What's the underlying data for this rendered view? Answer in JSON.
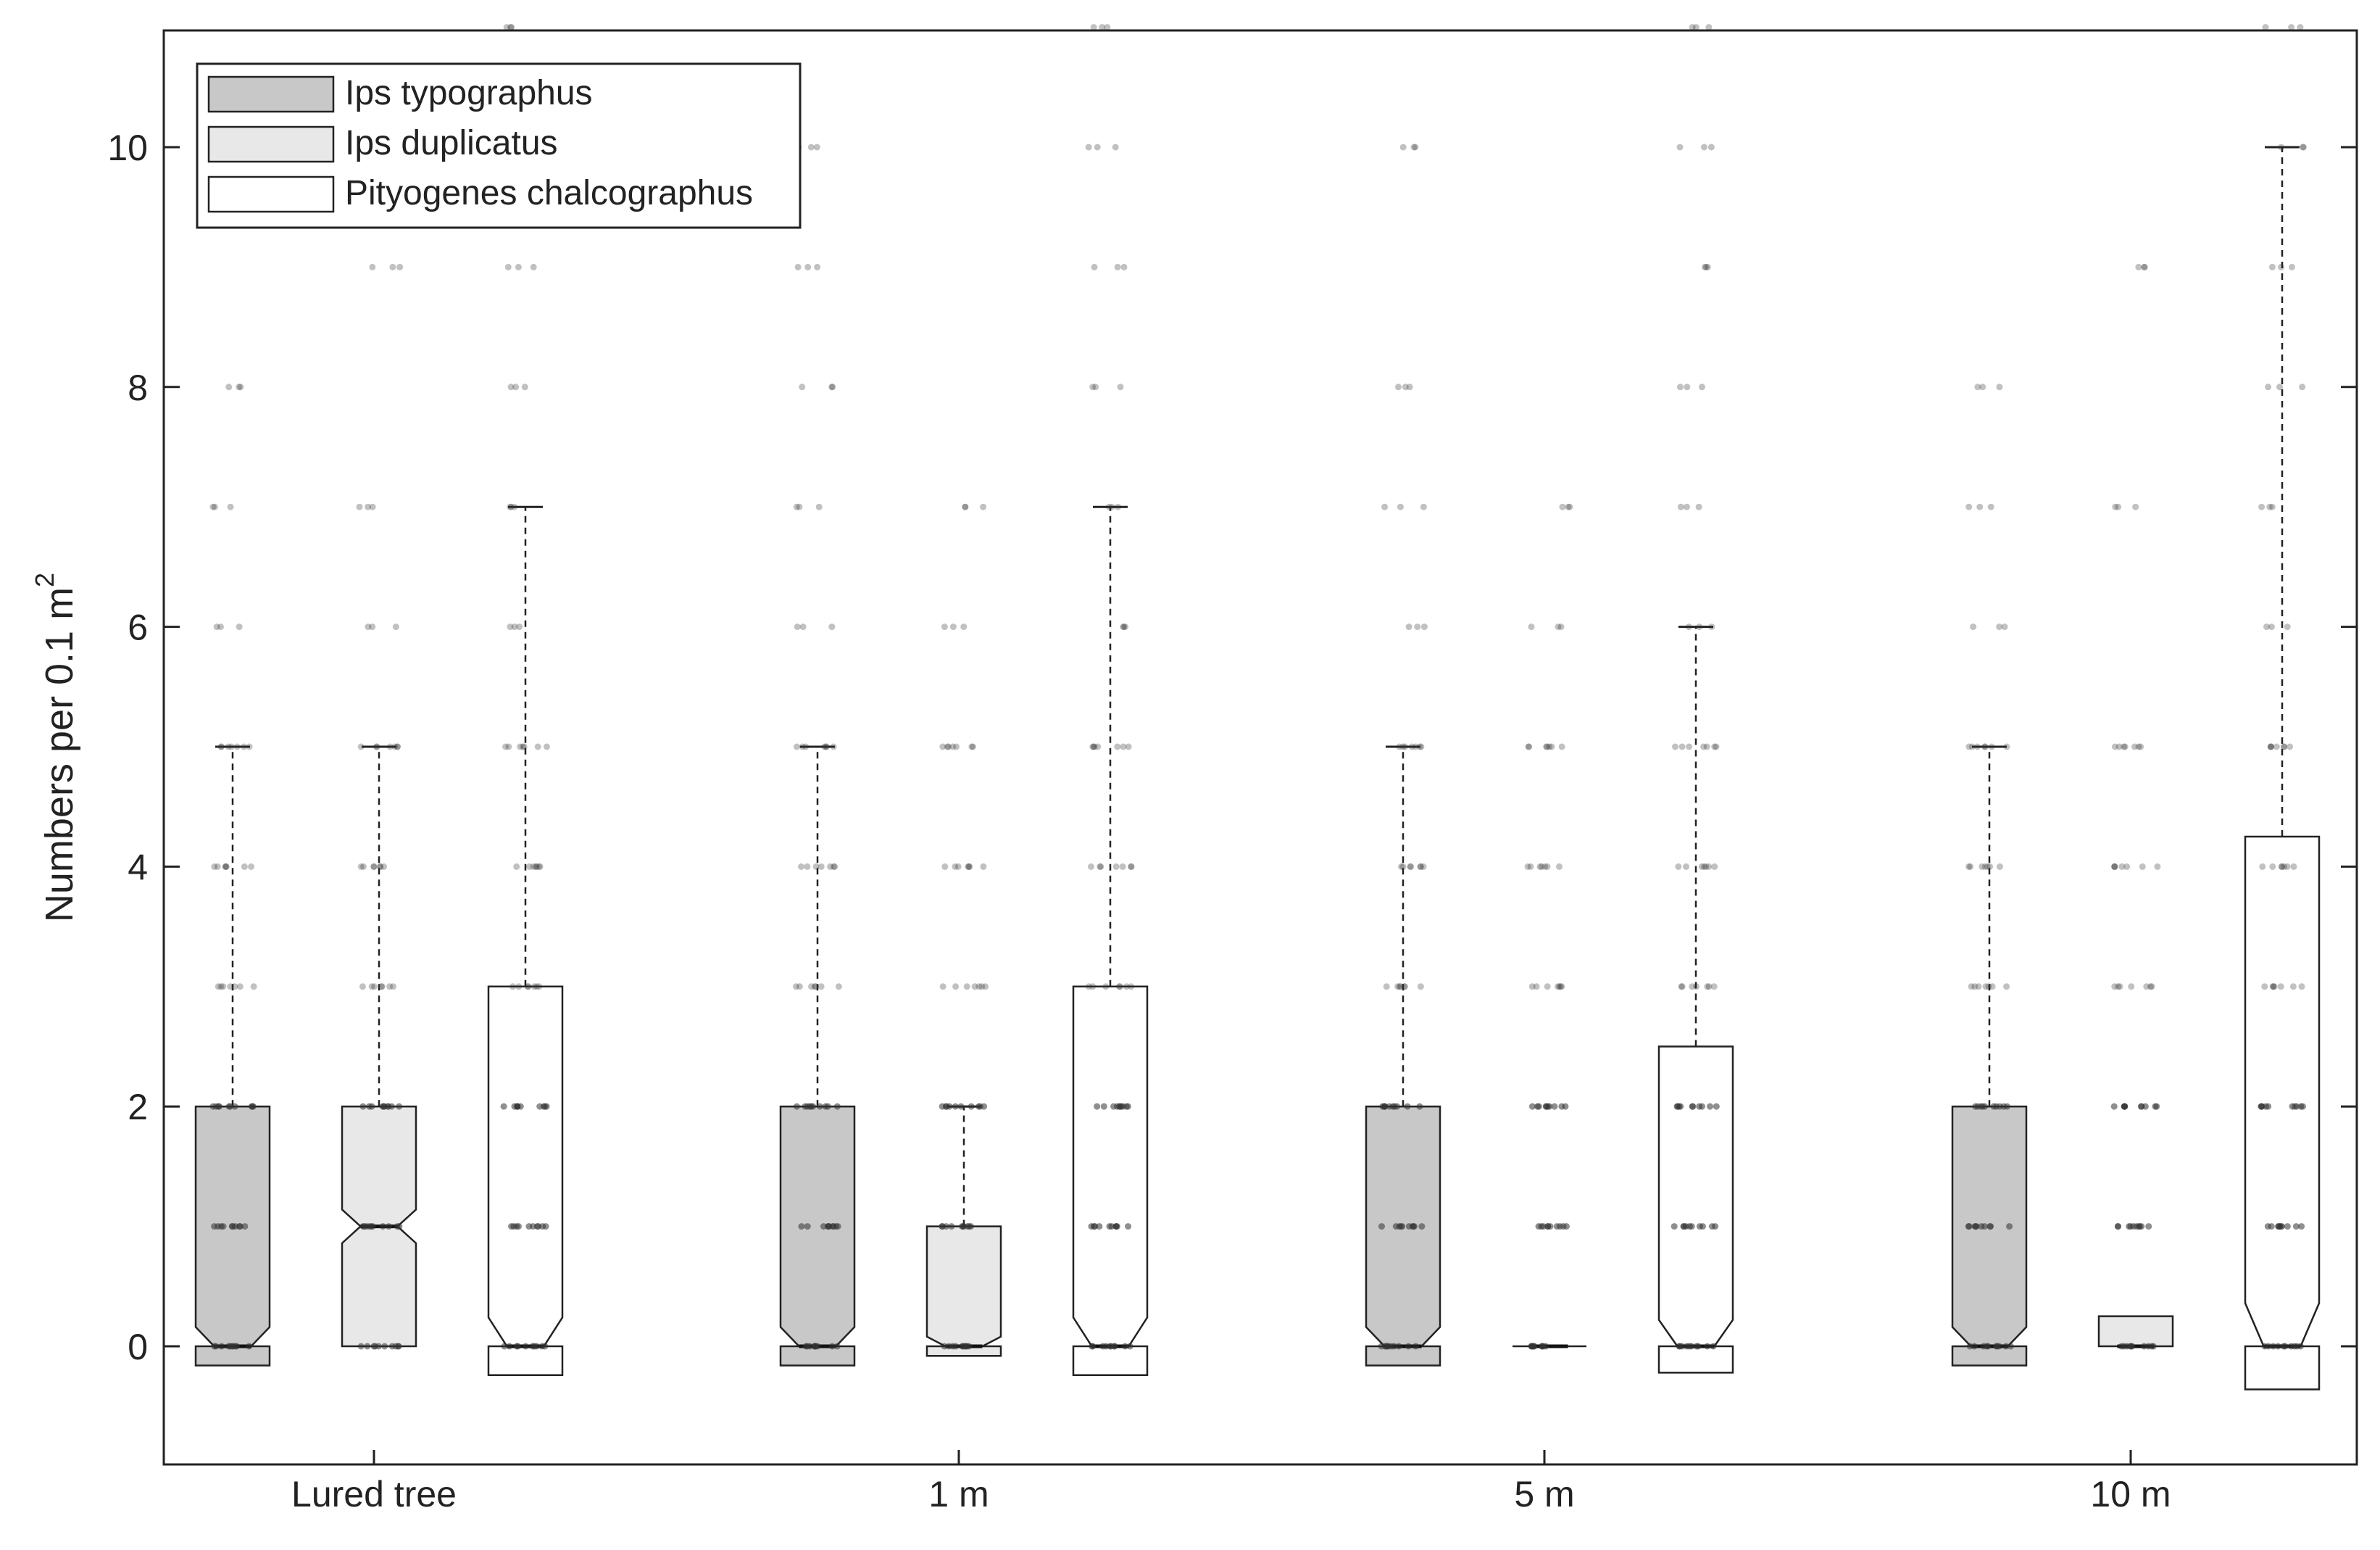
{
  "chart_data": {
    "type": "box",
    "title": "",
    "xlabel": "",
    "ylabel": {
      "text": "Numbers per 0.1 m",
      "superscript": "2"
    },
    "ylim": [
      -1,
      11
    ],
    "yticks": [
      0,
      2,
      4,
      6,
      8,
      10
    ],
    "ytick_labels": [
      "0",
      "2",
      "4",
      "6",
      "8",
      "10"
    ],
    "grid": false,
    "legend_position": "top-left",
    "categories": [
      "Lured tree",
      "1 m",
      "5 m",
      "10 m"
    ],
    "series": [
      {
        "name": "Ips typographus",
        "color": "#c8c8c8",
        "boxes": [
          {
            "q1": 0,
            "median": 0,
            "q3": 2,
            "whisker_low": 0,
            "whisker_high": 5,
            "notch_low": -0.16,
            "notch_high": 0.16,
            "points": [
              0,
              1,
              2,
              3,
              4,
              5,
              6,
              7,
              8
            ]
          },
          {
            "q1": 0,
            "median": 0,
            "q3": 2,
            "whisker_low": 0,
            "whisker_high": 5,
            "notch_low": -0.16,
            "notch_high": 0.16,
            "points": [
              0,
              1,
              2,
              3,
              4,
              5,
              6,
              7,
              8,
              9,
              10
            ]
          },
          {
            "q1": 0,
            "median": 0,
            "q3": 2,
            "whisker_low": 0,
            "whisker_high": 5,
            "notch_low": -0.16,
            "notch_high": 0.16,
            "points": [
              0,
              1,
              2,
              3,
              4,
              5,
              6,
              7,
              8,
              10
            ]
          },
          {
            "q1": 0,
            "median": 0,
            "q3": 2,
            "whisker_low": 0,
            "whisker_high": 5,
            "notch_low": -0.16,
            "notch_high": 0.16,
            "points": [
              0,
              1,
              2,
              3,
              4,
              5,
              6,
              7,
              8
            ]
          }
        ]
      },
      {
        "name": "Ips duplicatus",
        "color": "#e8e8e8",
        "boxes": [
          {
            "q1": 0,
            "median": 1,
            "q3": 2,
            "whisker_low": 0,
            "whisker_high": 5,
            "notch_low": 0.86,
            "notch_high": 1.14,
            "points": [
              0,
              1,
              2,
              3,
              4,
              5,
              6,
              7,
              9
            ]
          },
          {
            "q1": 0,
            "median": 0,
            "q3": 1,
            "whisker_low": 0,
            "whisker_high": 2,
            "notch_low": -0.08,
            "notch_high": 0.08,
            "points": [
              0,
              1,
              2,
              3,
              4,
              5,
              6,
              7
            ]
          },
          {
            "q1": 0,
            "median": 0,
            "q3": 0,
            "whisker_low": 0,
            "whisker_high": 0,
            "notch_low": 0,
            "notch_high": 0,
            "points": [
              0,
              1,
              2,
              3,
              4,
              5,
              6,
              7
            ]
          },
          {
            "q1": 0,
            "median": 0,
            "q3": 0.25,
            "whisker_low": 0,
            "whisker_high": 0.25,
            "notch_low": 0,
            "notch_high": 0,
            "points": [
              0,
              1,
              2,
              3,
              4,
              5,
              7,
              9
            ]
          }
        ]
      },
      {
        "name": "Pityogenes chalcographus",
        "color": "#ffffff",
        "boxes": [
          {
            "q1": 0,
            "median": 0,
            "q3": 3,
            "whisker_low": 0,
            "whisker_high": 7,
            "notch_low": -0.24,
            "notch_high": 0.24,
            "points": [
              0,
              1,
              2,
              3,
              4,
              5,
              6,
              7,
              8,
              9,
              11
            ]
          },
          {
            "q1": 0,
            "median": 0,
            "q3": 3,
            "whisker_low": 0,
            "whisker_high": 7,
            "notch_low": -0.24,
            "notch_high": 0.24,
            "points": [
              0,
              1,
              2,
              3,
              4,
              5,
              6,
              7,
              8,
              9,
              10,
              11
            ]
          },
          {
            "q1": 0,
            "median": 0,
            "q3": 2.5,
            "whisker_low": 0,
            "whisker_high": 6,
            "notch_low": -0.22,
            "notch_high": 0.22,
            "points": [
              0,
              1,
              2,
              3,
              4,
              5,
              6,
              7,
              8,
              9,
              10,
              11
            ]
          },
          {
            "q1": 0,
            "median": 0,
            "q3": 4.25,
            "whisker_low": 0,
            "whisker_high": 10,
            "notch_low": -0.36,
            "notch_high": 0.36,
            "points": [
              0,
              1,
              2,
              3,
              4,
              5,
              6,
              7,
              8,
              9,
              10,
              11
            ]
          }
        ]
      }
    ]
  }
}
